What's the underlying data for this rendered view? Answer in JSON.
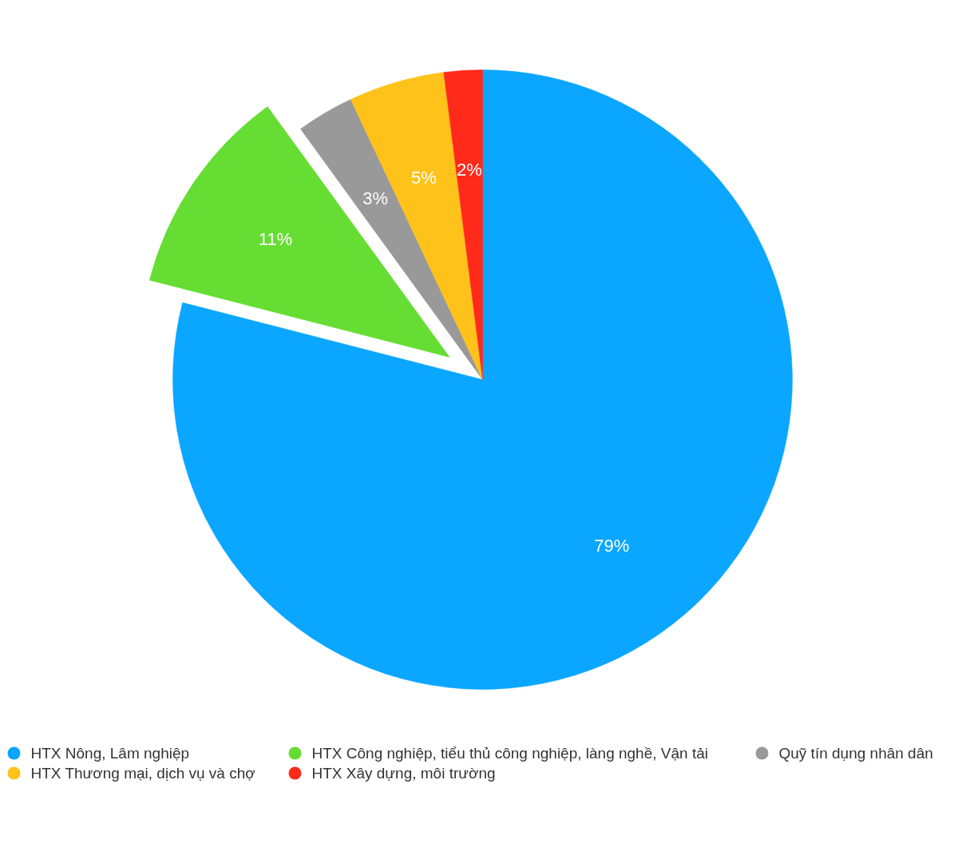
{
  "chart_data": {
    "type": "pie",
    "categories": [
      "HTX Nông, Lâm nghiệp",
      "HTX Công nghiệp, tiểu thủ công nghiệp, làng nghề, Vận tải",
      "Quỹ tín dụng nhân dân",
      "HTX Thương mại, dịch vụ và chợ",
      "HTX Xây dựng, môi trường"
    ],
    "values": [
      79,
      11,
      3,
      5,
      2
    ],
    "colors": [
      "#0aa6ff",
      "#66dd33",
      "#999999",
      "#ffc21a",
      "#ff2a1a"
    ],
    "value_labels": [
      "79%",
      "11%",
      "3%",
      "5%",
      "2%"
    ],
    "legend": "bottom"
  }
}
